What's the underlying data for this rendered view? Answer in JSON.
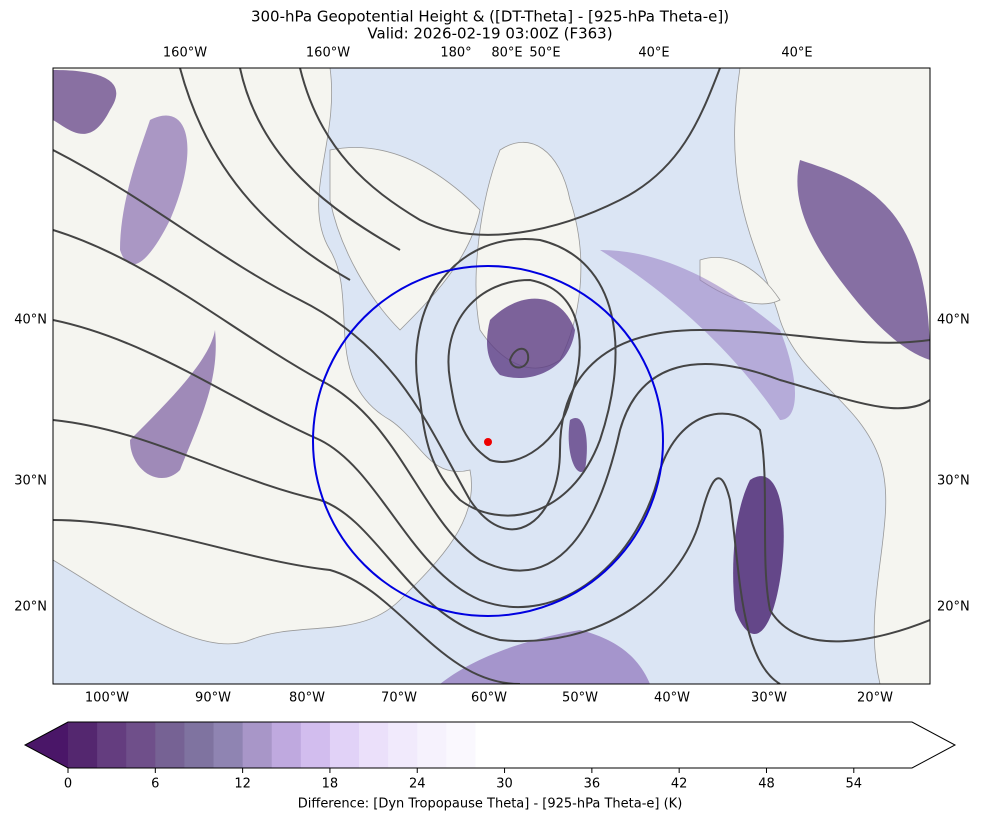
{
  "header": {
    "title": "300-hPa Geopotential Height & ([DT-Theta] - [925-hPa Theta-e])",
    "subtitle": "Valid: 2026-02-19 03:00Z (F363)"
  },
  "map": {
    "top_labels": [
      "160°W",
      "160°W",
      "180°",
      "80°E",
      "50°E",
      "40°E",
      "40°E"
    ],
    "bottom_labels": [
      "100°W",
      "90°W",
      "80°W",
      "70°W",
      "60°W",
      "50°W",
      "40°W",
      "30°W",
      "20°W"
    ],
    "left_labels": [
      "40°N",
      "30°N",
      "20°N"
    ],
    "right_labels": [
      "40°N",
      "30°N",
      "20°N"
    ]
  },
  "colorbar": {
    "label": "Difference: [Dyn Tropopause Theta] - [925-hPa Theta-e] (K)",
    "lim": [
      0,
      58
    ],
    "ticks": [
      0,
      6,
      12,
      18,
      24,
      30,
      36,
      42,
      48,
      54
    ],
    "bin_width": 2,
    "under_color": "#4a1668",
    "colors": [
      "#54276f",
      "#643d7f",
      "#6f4f8a",
      "#766294",
      "#7f73a0",
      "#8f84b2",
      "#a896c8",
      "#bfa9df",
      "#d2bdee",
      "#e1d2f7",
      "#ebe0fa",
      "#f1eafc",
      "#f6f2fd",
      "#faf8fe",
      "#ffffff"
    ],
    "over_color": "#ffffff"
  }
}
